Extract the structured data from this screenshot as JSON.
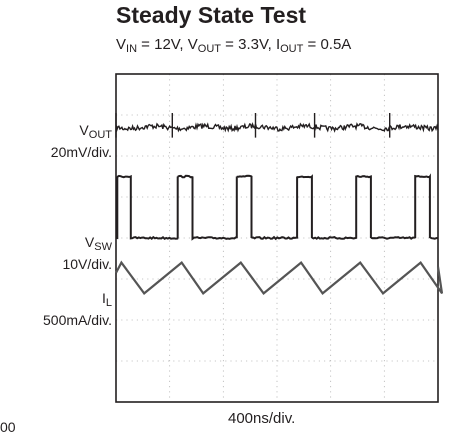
{
  "chart_data": {
    "type": "line",
    "title": "Steady State Test",
    "subtitle": {
      "vin_sym": "V",
      "vin_sub": "IN",
      "vin_val": " = 12V, ",
      "vout_sym": "V",
      "vout_sub": "OUT",
      "vout_val": " = 3.3V, ",
      "iout_sym": "I",
      "iout_sub": "OUT",
      "iout_val": " = 0.5A"
    },
    "xlabel": "400ns/div.",
    "x_unit_ns_per_div": 400,
    "divisions": {
      "x": 6,
      "y": 8
    },
    "grid": true,
    "channels": [
      {
        "symbol": "V",
        "sub": "OUT",
        "scale": "20mV/div.",
        "waveform": "ripple",
        "baseline_div": 1.3,
        "spike_times_ns": [
          0,
          420,
          1040,
          1480,
          2040
        ]
      },
      {
        "symbol": "V",
        "sub": "SW",
        "scale": "10V/div.",
        "waveform": "square",
        "low_div": 4.0,
        "high_div": 2.5,
        "pulses_ns": [
          [
            10,
            110
          ],
          [
            460,
            570
          ],
          [
            900,
            1010
          ],
          [
            1350,
            1460
          ],
          [
            1790,
            1900
          ],
          [
            2230,
            2340
          ]
        ]
      },
      {
        "symbol": "I",
        "sub": "L",
        "scale": "500mA/div.",
        "waveform": "triangle",
        "peaks_ns": [
          40,
          490,
          930,
          1380,
          1820,
          2270
        ],
        "valleys_ns": [
          210,
          650,
          1100,
          1540,
          1990,
          2430
        ],
        "peak_div": 4.6,
        "valley_div": 5.35
      }
    ],
    "corner_text": "00"
  }
}
